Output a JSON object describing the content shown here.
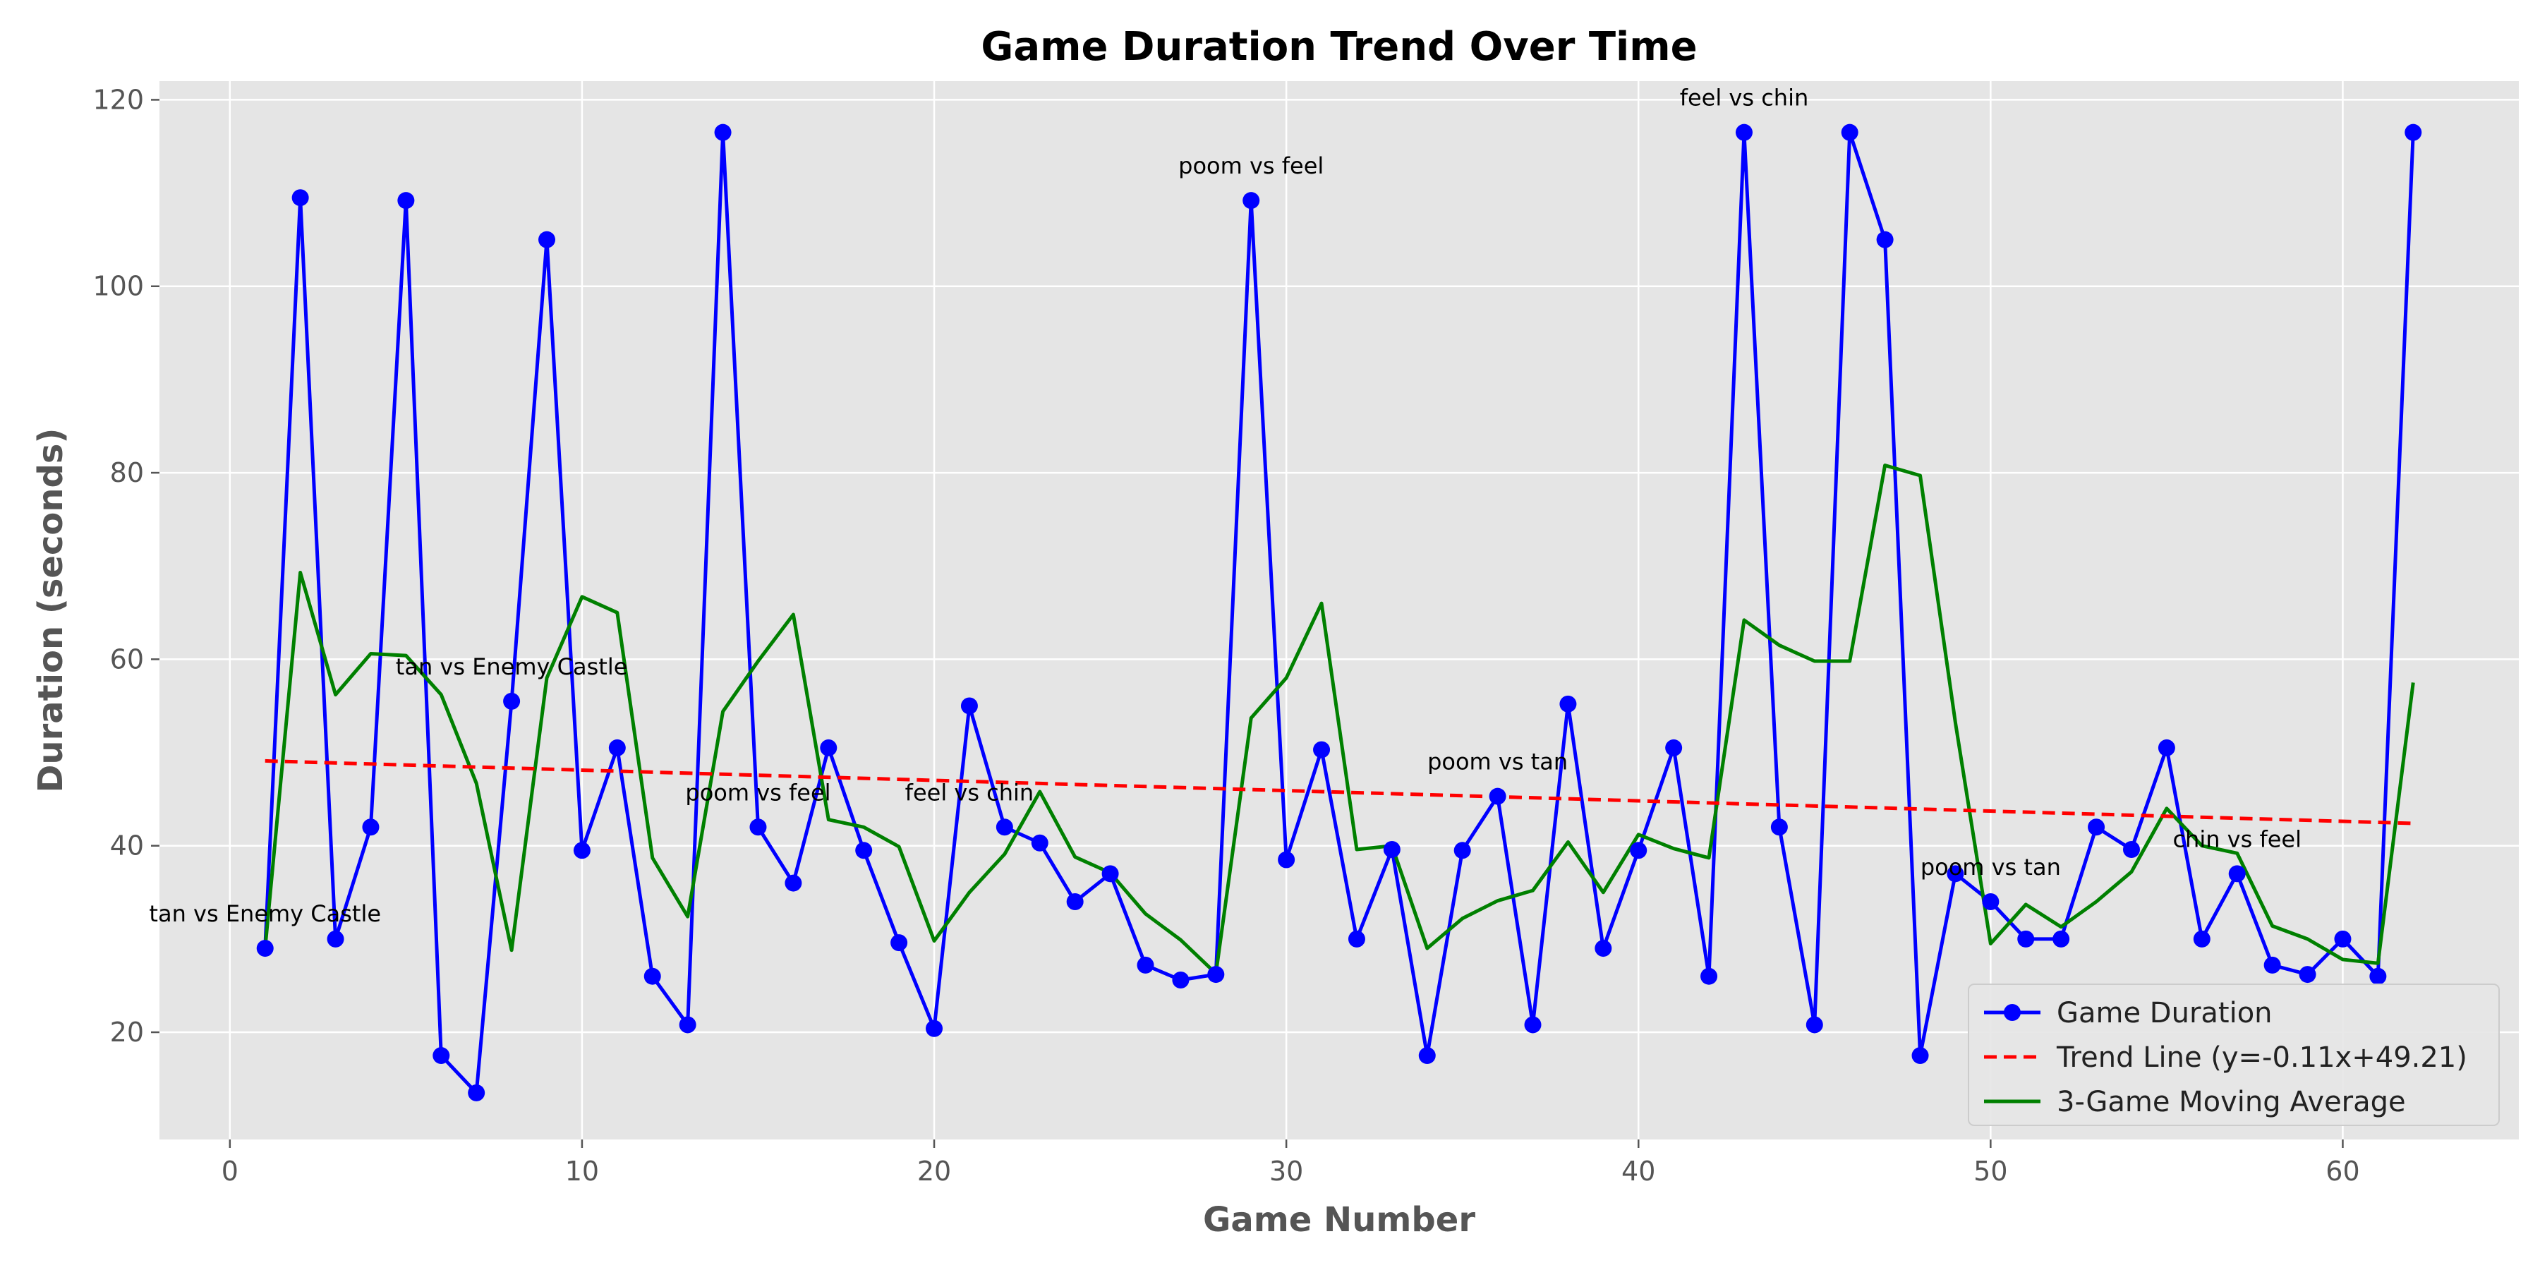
{
  "chart_data": {
    "type": "line",
    "title": "Game Duration Trend Over Time",
    "xlabel": "Game Number",
    "ylabel": "Duration (seconds)",
    "xlim": [
      -2,
      65
    ],
    "ylim": [
      8.5,
      122
    ],
    "xticks": [
      0,
      10,
      20,
      30,
      40,
      50,
      60
    ],
    "yticks": [
      20,
      40,
      60,
      80,
      100,
      120
    ],
    "grid": true,
    "legend_position": "lower-right",
    "x": [
      1,
      2,
      3,
      4,
      5,
      6,
      7,
      8,
      9,
      10,
      11,
      12,
      13,
      14,
      15,
      16,
      17,
      18,
      19,
      20,
      21,
      22,
      23,
      24,
      25,
      26,
      27,
      28,
      29,
      30,
      31,
      32,
      33,
      34,
      35,
      36,
      37,
      38,
      39,
      40,
      41,
      42,
      43,
      44,
      45,
      46,
      47,
      48,
      49,
      50,
      51,
      52,
      53,
      54,
      55,
      56,
      57,
      58,
      59,
      60,
      61,
      62
    ],
    "series": [
      {
        "name": "Game Duration",
        "kind": "line-markers",
        "color": "#0000ff",
        "values": [
          29.0,
          109.5,
          30.0,
          42.0,
          109.2,
          17.5,
          13.5,
          55.5,
          105.0,
          39.5,
          50.5,
          26.0,
          20.8,
          116.5,
          42.0,
          36.0,
          50.5,
          39.5,
          29.6,
          20.4,
          55.0,
          42.0,
          40.3,
          34.0,
          37.0,
          27.2,
          25.6,
          26.2,
          109.2,
          38.5,
          50.3,
          30.0,
          39.6,
          17.5,
          39.5,
          45.3,
          20.8,
          55.2,
          29.0,
          39.5,
          50.5,
          26.0,
          116.5,
          42.0,
          20.8,
          116.5,
          105.0,
          17.5,
          37.0,
          34.0,
          30.0,
          30.0,
          42.0,
          39.6,
          50.5,
          30.0,
          37.0,
          27.2,
          26.2,
          30.0,
          26.0,
          116.5
        ]
      },
      {
        "name": "Trend Line (y=-0.11x+49.21)",
        "kind": "dashed-line",
        "color": "#ff0000",
        "x": [
          1,
          62
        ],
        "values": [
          49.1,
          42.4
        ]
      },
      {
        "name": "3-Game Moving Average",
        "kind": "line",
        "color": "#008000",
        "values": [
          29.0,
          69.3,
          56.2,
          60.6,
          60.4,
          56.2,
          46.7,
          28.8,
          58.0,
          66.7,
          65.0,
          38.7,
          32.4,
          54.4,
          59.8,
          64.8,
          42.8,
          42.0,
          39.9,
          29.8,
          35.0,
          39.1,
          45.8,
          38.8,
          37.1,
          32.7,
          29.9,
          26.3,
          53.7,
          58.0,
          66.0,
          39.6,
          40.0,
          29.0,
          32.2,
          34.1,
          35.2,
          40.4,
          35.0,
          41.2,
          39.7,
          38.7,
          64.2,
          61.5,
          59.8,
          59.8,
          80.8,
          79.7,
          53.2,
          29.5,
          33.7,
          31.3,
          34.0,
          37.2,
          44.0,
          40.0,
          39.2,
          31.4,
          30.0,
          27.8,
          27.4,
          57.5
        ]
      }
    ],
    "annotations": [
      {
        "text": "tan vs Enemy Castle",
        "x": 1,
        "y": 29.0
      },
      {
        "text": "tan vs Enemy Castle",
        "x": 8,
        "y": 55.5
      },
      {
        "text": "poom vs feel",
        "x": 15,
        "y": 42.0
      },
      {
        "text": "feel vs chin",
        "x": 21,
        "y": 42.0
      },
      {
        "text": "poom vs feel",
        "x": 29,
        "y": 109.2
      },
      {
        "text": "poom vs tan",
        "x": 36,
        "y": 45.3
      },
      {
        "text": "feel vs chin",
        "x": 43,
        "y": 116.5
      },
      {
        "text": "poom vs tan",
        "x": 50,
        "y": 34.0
      },
      {
        "text": "chin vs feel",
        "x": 57,
        "y": 37.0
      }
    ]
  }
}
